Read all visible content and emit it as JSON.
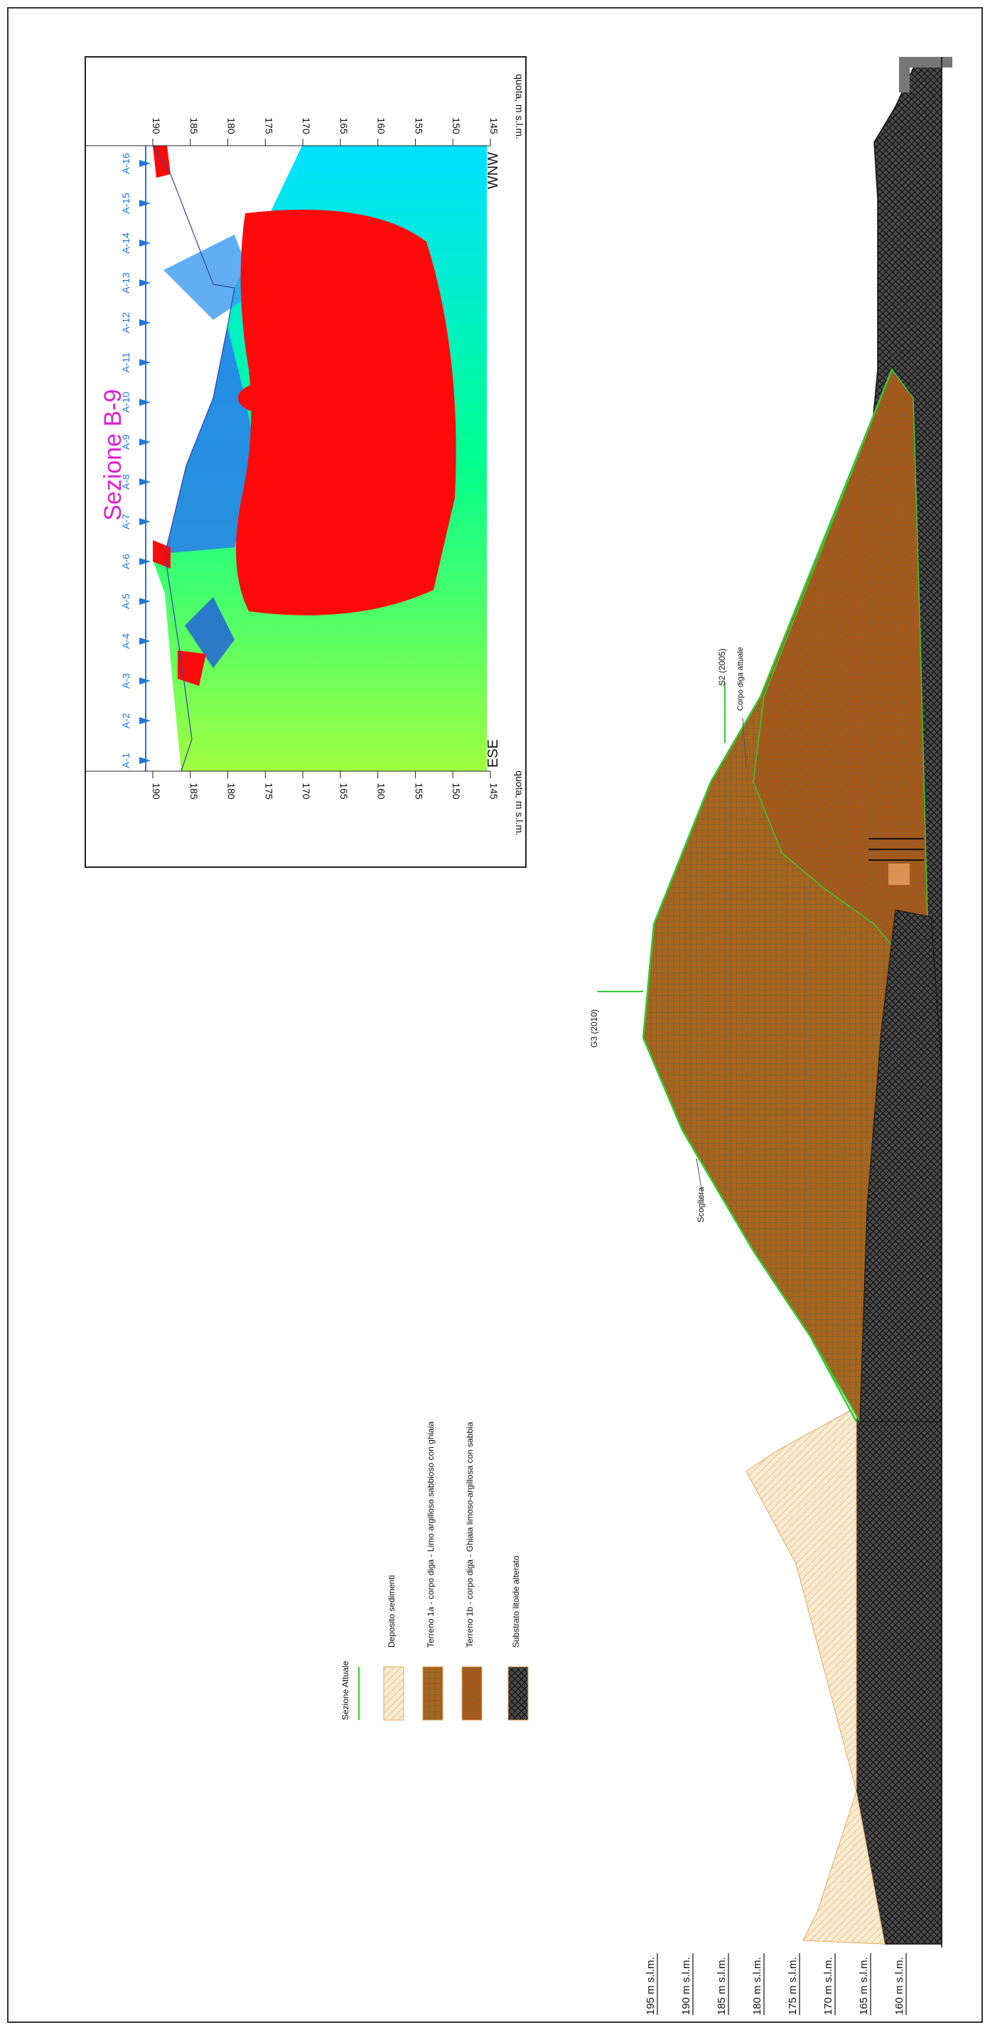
{
  "title": "Sezione B-9",
  "inset": {
    "ese_label": "ESE",
    "wnw_label": "WNW",
    "axis_title": "quota, m s.l.m.",
    "ticks": [
      "190",
      "185",
      "180",
      "175",
      "170",
      "165",
      "160",
      "155",
      "150",
      "145"
    ],
    "stations": [
      "A-1",
      "A-2",
      "A-3",
      "A-4",
      "A-5",
      "A-6",
      "A-7",
      "A-8",
      "A-9",
      "A-10",
      "A-11",
      "A-12",
      "A-13",
      "A-14",
      "A-15",
      "A-16"
    ]
  },
  "labels": {
    "g3": "G3 (2010)",
    "s2": "S2 (2005)",
    "corpo_diga": "Corpo diga attuale",
    "scogliera": "Scogliera"
  },
  "legend": [
    {
      "key": "sezione",
      "text": "Sezione Attuale"
    },
    {
      "key": "deposito",
      "text": "Deposito sedimenti"
    },
    {
      "key": "terreno1a",
      "text": "Terreno 1a - corpo diga - Limo argilloso sabbioso con ghiaia"
    },
    {
      "key": "terreno1b",
      "text": "Terreno 1b - corpo diga - Ghiaia limoso-argillosa con sabbia"
    },
    {
      "key": "substrato",
      "text": "Substrato litoide alterato"
    }
  ],
  "elevations": [
    "195 m s.l.m.",
    "190 m s.l.m.",
    "185 m s.l.m.",
    "180 m s.l.m.",
    "175 m s.l.m.",
    "170 m s.l.m.",
    "165 m s.l.m.",
    "160 m s.l.m."
  ],
  "colors": {
    "section_line": "#33cc33",
    "sediment": "#f7e6c4",
    "terreno1a": "#a8621e",
    "terreno1b": "#a0581a",
    "substrato": "#3c3c3c",
    "station_blue": "#1f78d8",
    "title_magenta": "#e020d0"
  }
}
